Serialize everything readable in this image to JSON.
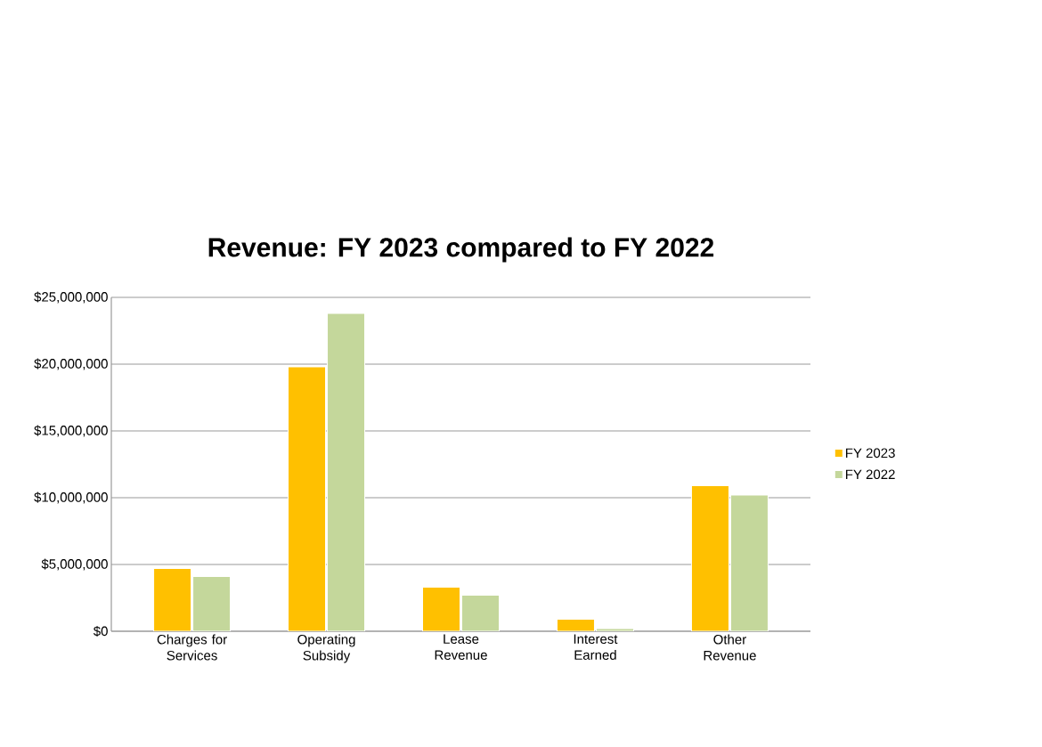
{
  "chart_data": {
    "type": "bar",
    "title": "Revenue: FY 2023 compared to FY 2022",
    "categories": [
      "Charges for Services",
      "Operating Subsidy",
      "Lease Revenue",
      "Interest Earned",
      "Other Revenue"
    ],
    "series": [
      {
        "name": "FY 2023",
        "color": "#ffc000",
        "values": [
          4700000,
          19800000,
          3300000,
          900000,
          10900000
        ]
      },
      {
        "name": "FY 2022",
        "color": "#c4d79b",
        "values": [
          4100000,
          23800000,
          2700000,
          200000,
          10200000
        ]
      }
    ],
    "ylim": [
      0,
      25000000
    ],
    "yticks": [
      {
        "value": 0,
        "label": "$0"
      },
      {
        "value": 5000000,
        "label": "$5,000,000"
      },
      {
        "value": 10000000,
        "label": "$10,000,000"
      },
      {
        "value": 15000000,
        "label": "$15,000,000"
      },
      {
        "value": 20000000,
        "label": "$20,000,000"
      },
      {
        "value": 25000000,
        "label": "$25,000,000"
      }
    ],
    "grid": "y",
    "legend": "right"
  }
}
